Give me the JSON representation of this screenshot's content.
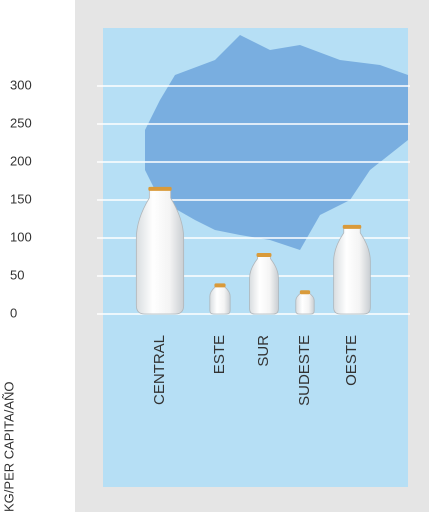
{
  "chart_data": {
    "type": "bottle",
    "y_label": "KG/PER CAPITA/AÑO",
    "categories": [
      "CENTRAL",
      "ESTE",
      "SUR",
      "SUDESTE",
      "OESTE"
    ],
    "values": [
      166,
      39,
      79,
      30,
      116
    ],
    "color": "#ffffff",
    "ylim": [
      0,
      300
    ],
    "yticks": [
      0,
      50,
      100,
      150,
      200,
      250,
      300
    ],
    "grid": true
  }
}
